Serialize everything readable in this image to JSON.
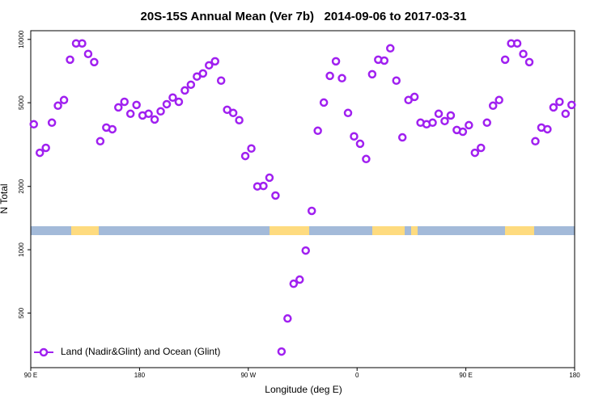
{
  "chart_data": {
    "type": "scatter",
    "title": "20S-15S Annual Mean (Ver 7b)   2014-09-06 to 2017-03-31",
    "xlabel": "Longitude (deg E)",
    "ylabel": "N Total",
    "log_y": true,
    "legend": "lower left",
    "xlim": [
      90,
      540
    ],
    "ylim": [
      275,
      11000
    ],
    "xticks": [
      {
        "value": 90,
        "label": "90 E"
      },
      180,
      {
        "value": 270,
        "label": "90 W"
      },
      {
        "value": 360,
        "label": "0"
      },
      {
        "value": 450,
        "label": "90 E"
      },
      {
        "value": 540,
        "label": "180"
      }
    ],
    "yticks": [
      500,
      1000,
      2000,
      5000,
      10000
    ],
    "series": [
      {
        "name": "Land (Nadir&Glint) and Ocean (Glint)",
        "color": "#a020f0",
        "x": [
          92.5,
          97.5,
          102.5,
          107.5,
          112.5,
          117.5,
          122.5,
          127.5,
          132.5,
          137.5,
          142.5,
          147.5,
          152.5,
          157.5,
          162.5,
          167.5,
          172.5,
          177.5,
          182.5,
          187.5,
          192.5,
          197.5,
          202.5,
          207.5,
          212.5,
          217.5,
          222.5,
          227.5,
          232.5,
          237.5,
          242.5,
          247.5,
          252.5,
          257.5,
          262.5,
          267.5,
          272.5,
          277.5,
          282.5,
          287.5,
          292.5,
          297.5,
          302.5,
          307.5,
          312.5,
          317.5,
          322.5,
          327.5,
          332.5,
          337.5,
          342.5,
          347.5,
          352.5,
          357.5,
          362.5,
          367.5,
          372.5,
          377.5,
          382.5,
          387.5,
          392.5,
          397.5,
          402.5,
          407.5,
          412.5,
          417.5,
          422.5,
          427.5,
          432.5,
          437.5,
          442.5,
          447.5,
          452.5,
          457.5,
          462.5,
          467.5,
          472.5,
          477.5,
          482.5,
          487.5,
          492.5,
          497.5,
          502.5,
          507.5,
          512.5,
          517.5,
          522.5,
          527.5,
          532.5,
          537.5
        ],
        "values": [
          3950,
          2890,
          3050,
          4020,
          4840,
          5150,
          8010,
          9570,
          9570,
          8530,
          7800,
          3280,
          3810,
          3740,
          4750,
          5050,
          4430,
          4880,
          4350,
          4430,
          4160,
          4550,
          4920,
          5290,
          5050,
          5720,
          6090,
          6660,
          6890,
          7530,
          7870,
          6370,
          4630,
          4470,
          4130,
          2790,
          3030,
          2000,
          2010,
          2200,
          1810,
          328,
          471,
          689,
          721,
          991,
          1530,
          3680,
          5010,
          6710,
          7870,
          6540,
          4470,
          3460,
          3190,
          2700,
          6830,
          8010,
          7930,
          9070,
          6370,
          3420,
          5150,
          5330,
          4020,
          3950,
          4020,
          4430,
          4090,
          4350,
          3710,
          3640,
          3910,
          2890,
          3050,
          4020,
          4840,
          5150,
          8010,
          9570,
          9570,
          8530,
          7800,
          3280,
          3810,
          3740,
          4750,
          5050,
          4430,
          4880
        ]
      }
    ]
  }
}
